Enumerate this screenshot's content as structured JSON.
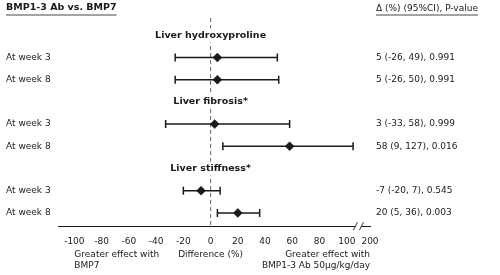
{
  "chart_data": {
    "type": "forest",
    "title": "BMP1-3 Ab vs. BMP7",
    "subtitle": "Δ (%) (95%CI), P-value",
    "xlabel": "Difference (%)",
    "annotations": [
      "Greater effect with\nBMP7",
      "Greater effect with\nBMP1-3 Ab 50μg/kg/day"
    ],
    "groups": [
      {
        "name": "Liver hydroxyproline",
        "rows": [
          {
            "label": "At week 3",
            "estimate": 5,
            "ci_low": -26,
            "ci_high": 49,
            "text": "5 (-26, 49), 0.991"
          },
          {
            "label": "At week 8",
            "estimate": 5,
            "ci_low": -26,
            "ci_high": 50,
            "text": "5 (-26, 50), 0.991"
          }
        ]
      },
      {
        "name": "Liver fibrosis*",
        "rows": [
          {
            "label": "At week 3",
            "estimate": 3,
            "ci_low": -33,
            "ci_high": 58,
            "text": "3 (-33, 58), 0.999"
          },
          {
            "label": "At week 8",
            "estimate": 58,
            "ci_low": 9,
            "ci_high": 127,
            "text": "58 (9, 127), 0.016"
          }
        ]
      },
      {
        "name": "Liver stiffness*",
        "rows": [
          {
            "label": "At week 3",
            "estimate": -7,
            "ci_low": -20,
            "ci_high": 7,
            "text": "-7 (-20, 7), 0.545"
          },
          {
            "label": "At week 8",
            "estimate": 20,
            "ci_low": 5,
            "ci_high": 36,
            "text": "20 (5, 36), 0.003"
          }
        ]
      }
    ],
    "reference": 0,
    "xlim": [
      -112,
      200
    ],
    "xticks": [
      -100,
      -80,
      -60,
      -40,
      -20,
      0,
      20,
      40,
      60,
      80,
      100,
      200
    ],
    "grid": false,
    "tick_labels": "x",
    "color": "#1a1a1a",
    "marker": "diamond"
  }
}
